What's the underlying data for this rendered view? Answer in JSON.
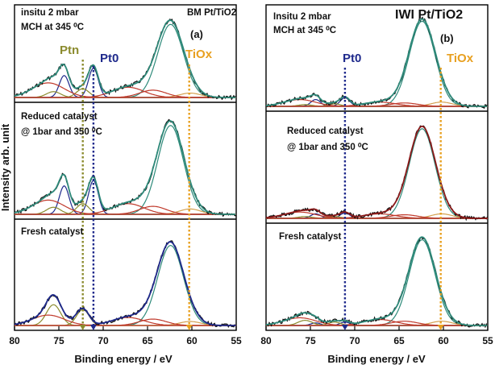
{
  "chart_data": [
    {
      "type": "line",
      "panel_label": "(a)",
      "title": "BM Pt/TiO2",
      "xlabel": "Binding energy / eV",
      "ylabel": "Intensity arb. unit",
      "xlim": [
        80,
        55
      ],
      "xticks": [
        80,
        75,
        70,
        65,
        60,
        55
      ],
      "condition_labels": [
        {
          "lines": [
            "insitu 2 mbar",
            "MCH at 345 ⁰C"
          ],
          "panel": "top"
        },
        {
          "lines": [
            "Reduced catalyst",
            "@ 1bar and 350 ⁰C"
          ],
          "panel": "middle"
        },
        {
          "lines": [
            "Fresh catalyst"
          ],
          "panel": "bottom"
        }
      ],
      "markers": [
        {
          "label": "Ptn",
          "x": 72.3,
          "color": "#8b8b2e"
        },
        {
          "label": "Pt0",
          "x": 71.1,
          "color": "#1f2a8c"
        },
        {
          "label": "TiOx",
          "x": 60.3,
          "color": "#e8a020"
        }
      ],
      "peak_model": {
        "ti": {
          "pos": 62.4,
          "w": 1.45
        },
        "ti_side": {
          "pos": 60.2,
          "w": 1.2
        },
        "pt0_72": {
          "pos": 71.1,
          "w": 0.55
        },
        "pt0_75": {
          "pos": 74.4,
          "w": 0.55
        },
        "ptn_72": {
          "pos": 72.3,
          "w": 0.7
        },
        "ptn_75": {
          "pos": 75.6,
          "w": 0.8
        },
        "broad_r1": {
          "pos": 76.2,
          "w": 1.8
        },
        "broad_r2": {
          "pos": 67.2,
          "w": 1.8
        },
        "broad_r3": {
          "pos": 64.4,
          "w": 1.5
        }
      },
      "spectra": [
        {
          "name": "insitu 2 mbar MCH",
          "amps": {
            "ti": 1.0,
            "ti_side": 0.06,
            "pt0_72": 0.4,
            "pt0_75": 0.3,
            "ptn_72": 0.12,
            "ptn_75": 0.08,
            "broad_r1": 0.2,
            "broad_r2": 0.14,
            "broad_r3": 0.1
          }
        },
        {
          "name": "Reduced catalyst",
          "amps": {
            "ti": 1.0,
            "ti_side": 0.06,
            "pt0_72": 0.38,
            "pt0_75": 0.32,
            "ptn_72": 0.12,
            "ptn_75": 0.08,
            "broad_r1": 0.16,
            "broad_r2": 0.12,
            "broad_r3": 0.09
          }
        },
        {
          "name": "Fresh catalyst",
          "amps": {
            "ti": 1.0,
            "ti_side": 0.05,
            "pt0_72": 0.0,
            "pt0_75": 0.0,
            "ptn_72": 0.2,
            "ptn_75": 0.26,
            "broad_r1": 0.13,
            "broad_r2": 0.1,
            "broad_r3": 0.08
          }
        }
      ]
    },
    {
      "type": "line",
      "panel_label": "(b)",
      "title": "IWI Pt/TiO2",
      "xlabel": "Binding energy / eV",
      "ylabel": "",
      "xlim": [
        80,
        55
      ],
      "xticks": [
        80,
        75,
        70,
        65,
        60,
        55
      ],
      "condition_labels": [
        {
          "lines": [
            "Insitu 2 mbar",
            "MCH at 345 ⁰C"
          ],
          "panel": "top"
        },
        {
          "lines": [
            "Reduced catalyst",
            "@ 1bar and 350 ⁰C"
          ],
          "panel": "middle"
        },
        {
          "lines": [
            "Fresh catalyst"
          ],
          "panel": "bottom"
        }
      ],
      "markers": [
        {
          "label": "Pt0",
          "x": 71.1,
          "color": "#1f2a8c"
        },
        {
          "label": "TiOx",
          "x": 60.3,
          "color": "#e8a020"
        }
      ],
      "peak_model": {
        "ti": {
          "pos": 62.4,
          "w": 1.45
        },
        "ti_side": {
          "pos": 60.2,
          "w": 1.2
        },
        "pt0_72": {
          "pos": 71.1,
          "w": 0.55
        },
        "pt0_75": {
          "pos": 74.4,
          "w": 0.55
        },
        "ptn_72": {
          "pos": 72.3,
          "w": 0.7
        },
        "ptn_75": {
          "pos": 75.6,
          "w": 0.8
        },
        "broad_r1": {
          "pos": 76.2,
          "w": 1.8
        },
        "broad_r2": {
          "pos": 67.2,
          "w": 1.8
        },
        "broad_r3": {
          "pos": 64.4,
          "w": 1.5
        }
      },
      "spectra": [
        {
          "name": "Insitu 2 mbar MCH",
          "amps": {
            "ti": 1.0,
            "ti_side": 0.05,
            "pt0_72": 0.1,
            "pt0_75": 0.08,
            "ptn_72": 0.03,
            "ptn_75": 0.02,
            "broad_r1": 0.08,
            "broad_r2": 0.05,
            "broad_r3": 0.04
          }
        },
        {
          "name": "Reduced catalyst",
          "amps": {
            "ti": 1.0,
            "ti_side": 0.05,
            "pt0_72": 0.06,
            "pt0_75": 0.05,
            "ptn_72": 0.02,
            "ptn_75": 0.02,
            "broad_r1": 0.07,
            "broad_r2": 0.05,
            "broad_r3": 0.04
          }
        },
        {
          "name": "Fresh catalyst",
          "amps": {
            "ti": 1.0,
            "ti_side": 0.05,
            "pt0_72": 0.04,
            "pt0_75": 0.03,
            "ptn_72": 0.04,
            "ptn_75": 0.06,
            "broad_r1": 0.09,
            "broad_r2": 0.07,
            "broad_r3": 0.05
          }
        }
      ]
    }
  ]
}
